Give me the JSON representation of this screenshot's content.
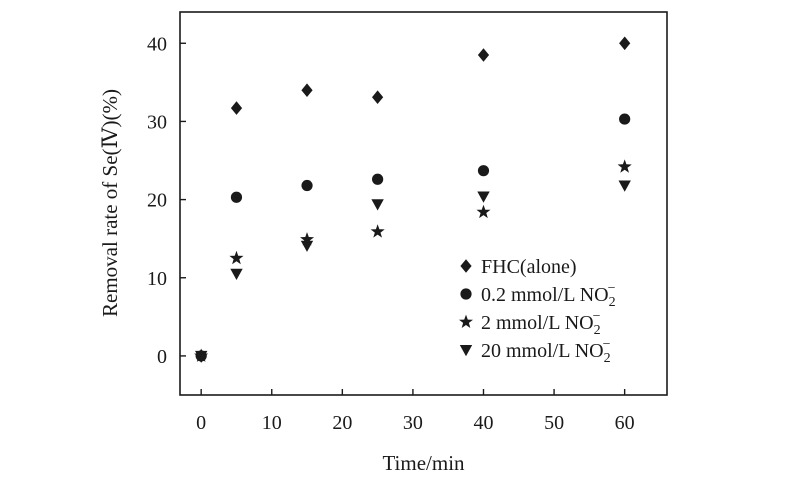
{
  "chart_data": {
    "type": "scatter",
    "xlabel": "Time/min",
    "ylabel": "Removal rate of Se(Ⅳ)(%)",
    "xlim": [
      -3,
      66
    ],
    "ylim": [
      -5,
      44
    ],
    "xticks": [
      0,
      10,
      20,
      30,
      40,
      50,
      60
    ],
    "yticks": [
      0,
      10,
      20,
      30,
      40
    ],
    "grid": false,
    "legend_position": "bottom-right",
    "series": [
      {
        "name": "FHC(alone)",
        "marker": "diamond",
        "points": [
          [
            0,
            0
          ],
          [
            5,
            31.7
          ],
          [
            15,
            34.0
          ],
          [
            25,
            33.1
          ],
          [
            40,
            38.5
          ],
          [
            60,
            40.0
          ]
        ]
      },
      {
        "name": "0.2 mmol/L NO",
        "marker": "circle",
        "ion_subscript": "2",
        "ion_superscript": "−",
        "points": [
          [
            0,
            0
          ],
          [
            5,
            20.3
          ],
          [
            15,
            21.8
          ],
          [
            25,
            22.6
          ],
          [
            40,
            23.7
          ],
          [
            60,
            30.3
          ]
        ]
      },
      {
        "name": "2 mmol/L NO",
        "marker": "star",
        "ion_subscript": "2",
        "ion_superscript": "−",
        "points": [
          [
            0,
            0
          ],
          [
            5,
            12.5
          ],
          [
            15,
            14.9
          ],
          [
            25,
            15.9
          ],
          [
            40,
            18.4
          ],
          [
            60,
            24.2
          ]
        ]
      },
      {
        "name": "20 mmol/L NO",
        "marker": "triangle-down",
        "ion_subscript": "2",
        "ion_superscript": "−",
        "points": [
          [
            0,
            0
          ],
          [
            5,
            10.5
          ],
          [
            15,
            14.1
          ],
          [
            25,
            19.4
          ],
          [
            40,
            20.4
          ],
          [
            60,
            21.8
          ]
        ]
      }
    ]
  }
}
